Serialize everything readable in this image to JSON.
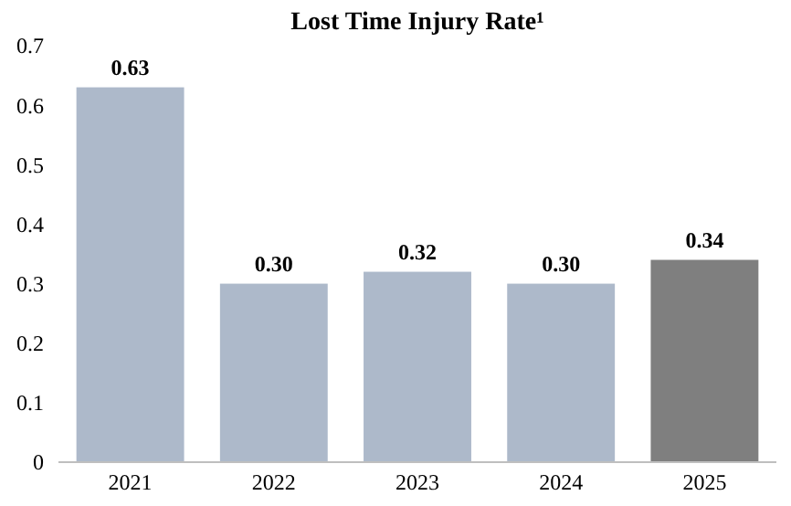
{
  "chart_data": {
    "type": "bar",
    "title": "Lost Time Injury Rate¹",
    "categories": [
      "2021",
      "2022",
      "2023",
      "2024",
      "2025"
    ],
    "values": [
      0.63,
      0.3,
      0.32,
      0.3,
      0.34
    ],
    "colors": [
      "#adb9ca",
      "#adb9ca",
      "#adb9ca",
      "#adb9ca",
      "#7f7f7f"
    ],
    "value_labels": [
      "0.63",
      "0.30",
      "0.32",
      "0.30",
      "0.34"
    ],
    "ylim": [
      0,
      0.7
    ],
    "yticks": [
      0,
      0.1,
      0.2,
      0.3,
      0.4,
      0.5,
      0.6,
      0.7
    ],
    "grid": false
  }
}
